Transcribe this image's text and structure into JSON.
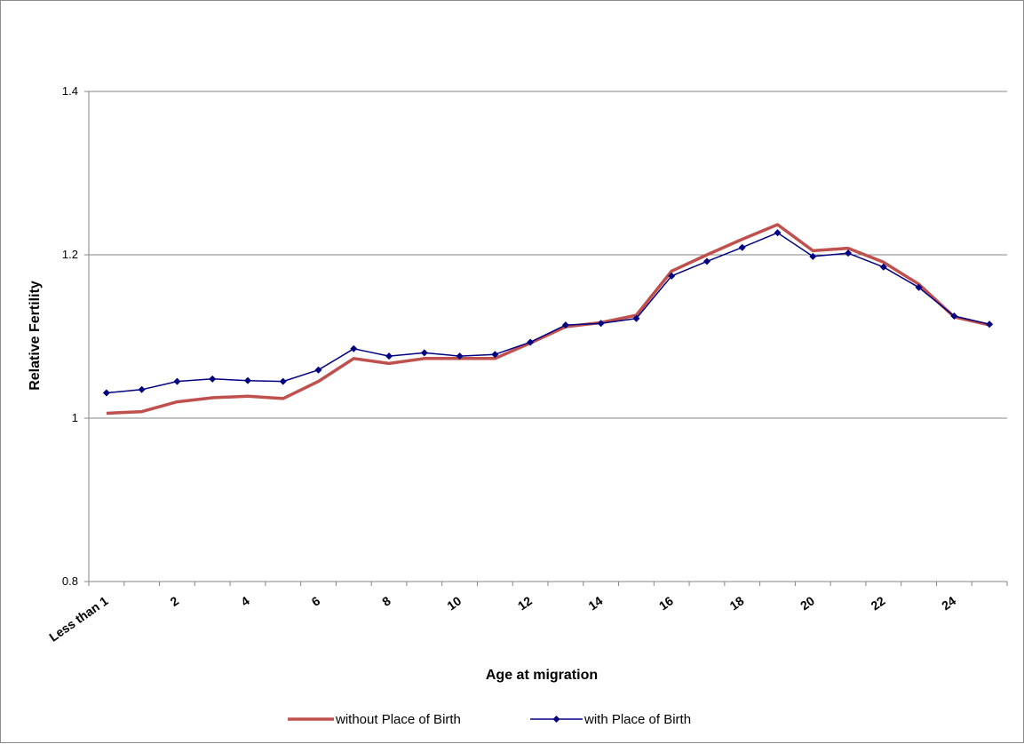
{
  "chart_data": {
    "type": "line",
    "xlabel": "Age at migration",
    "ylabel": "Relative Fertility",
    "ylim": [
      0.8,
      1.4
    ],
    "yticks": [
      "0.8",
      "1",
      "1.2",
      "1.4"
    ],
    "grid": "horizontal",
    "legend_position": "bottom",
    "x_tick_labels": [
      {
        "index": 0,
        "label": "Less than 1"
      },
      {
        "index": 2,
        "label": "2"
      },
      {
        "index": 4,
        "label": "4"
      },
      {
        "index": 6,
        "label": "6"
      },
      {
        "index": 8,
        "label": "8"
      },
      {
        "index": 10,
        "label": "10"
      },
      {
        "index": 12,
        "label": "12"
      },
      {
        "index": 14,
        "label": "14"
      },
      {
        "index": 16,
        "label": "16"
      },
      {
        "index": 18,
        "label": "18"
      },
      {
        "index": 20,
        "label": "20"
      },
      {
        "index": 22,
        "label": "22"
      },
      {
        "index": 24,
        "label": "24"
      }
    ],
    "series": [
      {
        "name": "without Place of Birth",
        "color": "#c0504d",
        "marker": "none",
        "values": [
          1.006,
          1.008,
          1.02,
          1.025,
          1.027,
          1.024,
          1.045,
          1.073,
          1.067,
          1.073,
          1.073,
          1.073,
          1.092,
          1.112,
          1.117,
          1.126,
          1.18,
          1.2,
          1.219,
          1.237,
          1.205,
          1.208,
          1.191,
          1.164,
          1.124,
          1.114
        ]
      },
      {
        "name": "with Place of Birth",
        "color": "#000080",
        "marker": "diamond",
        "values": [
          1.031,
          1.035,
          1.045,
          1.048,
          1.046,
          1.045,
          1.059,
          1.085,
          1.076,
          1.08,
          1.076,
          1.078,
          1.093,
          1.114,
          1.116,
          1.122,
          1.174,
          1.192,
          1.209,
          1.227,
          1.198,
          1.202,
          1.185,
          1.16,
          1.125,
          1.115
        ]
      }
    ]
  }
}
